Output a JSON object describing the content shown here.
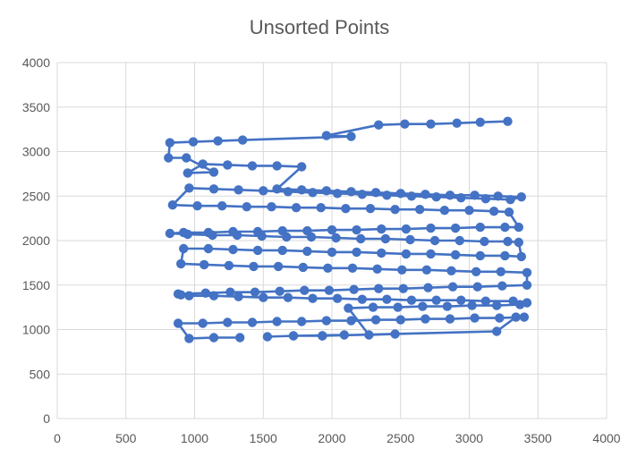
{
  "chart_data": {
    "type": "scatter",
    "title": "Unsorted Points",
    "xlabel": "",
    "ylabel": "",
    "xlim": [
      0,
      4000
    ],
    "ylim": [
      0,
      4000
    ],
    "x_ticks": [
      "0",
      "500",
      "1000",
      "1500",
      "2000",
      "2500",
      "3000",
      "3500",
      "4000"
    ],
    "y_ticks": [
      "0",
      "500",
      "1000",
      "1500",
      "2000",
      "2500",
      "3000",
      "3500",
      "4000"
    ],
    "grid": true,
    "legend": "none",
    "series_color": "#4472C4",
    "series": [
      {
        "x": [
          1330,
          1140,
          960,
          880,
          1060,
          1240,
          1420,
          1600,
          1780,
          1960,
          2140,
          2320,
          2500,
          2680,
          2860,
          3040,
          3220,
          3400,
          3340,
          3200,
          1930,
          1930,
          1720,
          1530,
          1720,
          2090,
          1930,
          2460,
          2270,
          2120,
          2300,
          2480,
          2660,
          2840,
          3020,
          3200,
          3370,
          3420,
          3320,
          3120,
          2940,
          2760,
          2580,
          2400,
          2220,
          2040,
          1860,
          1680,
          1500,
          1320,
          1140,
          960,
          900,
          880,
          1080,
          1260,
          1440,
          1620,
          1800,
          1980,
          2160,
          2340,
          2520,
          2700,
          2880,
          3060,
          3240,
          3420,
          3420,
          3230,
          3050,
          2870,
          2690,
          2510,
          2330,
          2150,
          1970,
          1790,
          1610,
          1430,
          1250,
          1070,
          900,
          920,
          1100,
          1280,
          1460,
          1640,
          1820,
          2000,
          2180,
          2360,
          2540,
          2720,
          2900,
          3080,
          3260,
          3380,
          3360,
          3280,
          3110,
          2930,
          2750,
          2570,
          2390,
          2210,
          2030,
          1850,
          1670,
          1490,
          1310,
          1130,
          950,
          820,
          920,
          1100,
          1280,
          1460,
          1640,
          1820,
          2000,
          2180,
          2360,
          2540,
          2720,
          2900,
          3080,
          3260,
          3360,
          3290,
          3180,
          3000,
          2820,
          2640,
          2460,
          2280,
          2100,
          1920,
          1740,
          1560,
          1380,
          1200,
          1020,
          840,
          960,
          1140,
          1320,
          1500,
          1680,
          1860,
          2040,
          2220,
          2400,
          2580,
          2760,
          2940,
          3120,
          3300,
          3380,
          3210,
          3040,
          2860,
          2680,
          2500,
          2320,
          2140,
          1960,
          1780,
          1600,
          1780,
          1600,
          1420,
          1240,
          1060,
          950,
          1140,
          940,
          810,
          820,
          990,
          1170,
          1350,
          2140,
          1960,
          2340,
          2530,
          2720,
          2910,
          3080,
          3280
        ],
        "y": [
          910,
          910,
          900,
          1070,
          1070,
          1080,
          1080,
          1090,
          1090,
          1100,
          1100,
          1110,
          1110,
          1120,
          1120,
          1130,
          1130,
          1140,
          1140,
          980,
          930,
          930,
          930,
          920,
          930,
          940,
          930,
          950,
          940,
          1240,
          1250,
          1250,
          1260,
          1260,
          1270,
          1270,
          1280,
          1300,
          1320,
          1320,
          1330,
          1330,
          1330,
          1340,
          1340,
          1350,
          1350,
          1360,
          1360,
          1370,
          1380,
          1380,
          1390,
          1400,
          1410,
          1420,
          1420,
          1430,
          1440,
          1440,
          1450,
          1460,
          1460,
          1470,
          1480,
          1480,
          1490,
          1500,
          1640,
          1650,
          1650,
          1660,
          1670,
          1670,
          1680,
          1690,
          1690,
          1700,
          1710,
          1710,
          1720,
          1730,
          1740,
          1910,
          1910,
          1900,
          1890,
          1890,
          1880,
          1870,
          1870,
          1860,
          1850,
          1850,
          1840,
          1830,
          1830,
          1820,
          1980,
          1990,
          1990,
          2000,
          2000,
          2010,
          2020,
          2020,
          2030,
          2040,
          2040,
          2050,
          2060,
          2060,
          2070,
          2080,
          2090,
          2090,
          2100,
          2100,
          2110,
          2110,
          2120,
          2120,
          2130,
          2130,
          2140,
          2140,
          2150,
          2150,
          2150,
          2320,
          2330,
          2340,
          2340,
          2350,
          2350,
          2360,
          2360,
          2370,
          2370,
          2380,
          2380,
          2390,
          2390,
          2400,
          2590,
          2580,
          2570,
          2560,
          2550,
          2540,
          2530,
          2520,
          2510,
          2500,
          2490,
          2480,
          2470,
          2460,
          2490,
          2500,
          2510,
          2510,
          2520,
          2530,
          2540,
          2550,
          2560,
          2570,
          2580,
          2830,
          2840,
          2840,
          2850,
          2860,
          2760,
          2770,
          2930,
          2930,
          3100,
          3110,
          3120,
          3130,
          3170,
          3180,
          3300,
          3310,
          3310,
          3320,
          3330,
          3340
        ],
        "name": ""
      }
    ]
  }
}
